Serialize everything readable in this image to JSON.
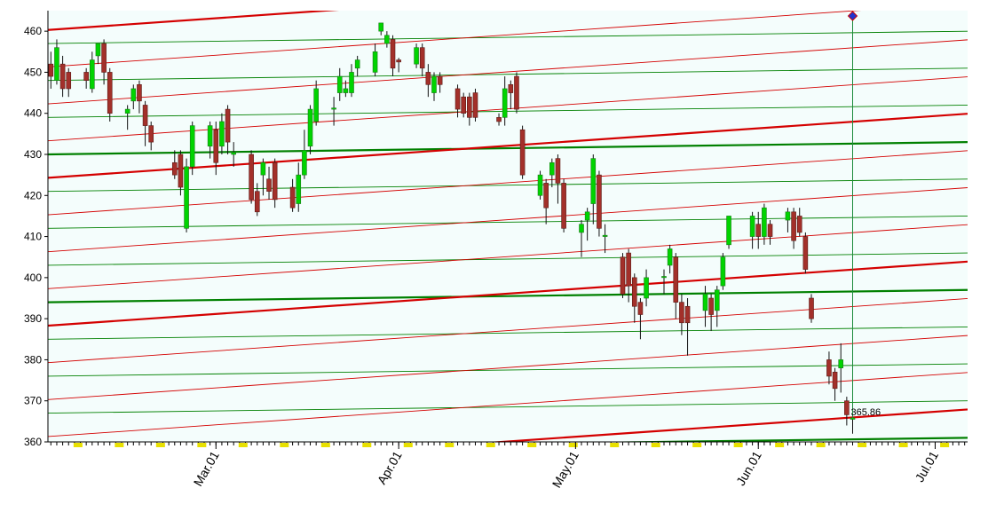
{
  "chart_data": {
    "type": "candlestick",
    "x": [
      0,
      1,
      2,
      3,
      6,
      7,
      8,
      9,
      10,
      13,
      14,
      15,
      16,
      17,
      21,
      22,
      23,
      24,
      27,
      28,
      29,
      30,
      31,
      34,
      35,
      36,
      37,
      38,
      41,
      42,
      43,
      44,
      45,
      48,
      49,
      50,
      51,
      52,
      55,
      56,
      57,
      58,
      59,
      62,
      63,
      64,
      65,
      66,
      69,
      70,
      71,
      72,
      76,
      77,
      78,
      79,
      80,
      83,
      84,
      85,
      86,
      87,
      90,
      91,
      92,
      93,
      94,
      97,
      98,
      99,
      100,
      101,
      104,
      105,
      106,
      107,
      108,
      111,
      112,
      113,
      114,
      115,
      119,
      120,
      121,
      122,
      125,
      126,
      127,
      128,
      129,
      132,
      133,
      134,
      135,
      136
    ],
    "open": [
      452,
      448,
      452,
      450,
      450,
      446,
      454,
      457,
      450,
      440,
      443,
      447,
      442,
      437,
      428,
      430,
      412,
      427,
      432,
      436,
      432,
      441,
      430,
      430,
      421,
      425,
      424,
      428,
      422,
      418,
      425,
      432,
      438,
      441,
      445,
      445,
      445,
      451,
      450,
      460,
      457,
      458,
      453,
      452,
      456,
      450,
      445,
      449,
      446,
      444,
      444,
      445,
      439,
      439,
      447,
      449,
      436,
      420,
      423,
      425,
      429,
      423,
      411,
      414,
      418,
      425,
      410,
      405,
      406,
      400,
      394,
      395,
      400,
      403,
      405,
      394,
      393,
      392,
      395,
      392,
      398,
      408,
      410,
      413,
      410,
      413,
      414,
      416,
      415,
      410,
      395,
      380,
      377,
      378,
      370,
      365.5
    ],
    "high": [
      455,
      458,
      454,
      451,
      451,
      455,
      457,
      458,
      451,
      442,
      447,
      448,
      443,
      438,
      431,
      431,
      429,
      438,
      438,
      438,
      440,
      442,
      433,
      431,
      423,
      429,
      427,
      429,
      424,
      428,
      436,
      442,
      448,
      444,
      451,
      448,
      452,
      454,
      457,
      462,
      460,
      459,
      453.5,
      457,
      457,
      452,
      450,
      450,
      447,
      445,
      445,
      446,
      440,
      449,
      448,
      450,
      437,
      426,
      424,
      429,
      430,
      424,
      414,
      417,
      430,
      426,
      413,
      406,
      407,
      401,
      395,
      402,
      402,
      408,
      406,
      396,
      395,
      398,
      396,
      398,
      406,
      415,
      416,
      416,
      418,
      414,
      417,
      417,
      417,
      411,
      396,
      382,
      378,
      384,
      371,
      369
    ],
    "low": [
      446,
      447,
      444,
      444,
      446,
      445,
      452,
      447,
      438,
      436,
      441,
      440,
      432,
      431,
      424,
      420,
      411,
      425,
      429,
      425,
      430,
      430,
      427,
      418,
      415,
      420,
      419,
      417,
      416,
      416,
      424,
      430,
      437,
      437,
      443,
      444,
      444,
      449,
      449,
      459,
      456,
      449,
      450,
      451,
      449,
      444,
      443,
      445,
      439,
      439,
      437,
      438,
      437,
      437,
      441,
      440,
      424,
      419,
      413,
      422,
      418,
      411,
      405,
      409,
      413,
      410,
      406,
      395,
      394,
      389,
      385,
      393,
      396,
      401,
      390,
      386,
      381,
      388,
      387,
      388,
      397,
      407,
      407,
      407,
      408,
      408,
      411,
      407,
      410,
      401,
      389,
      374,
      370,
      372,
      364,
      362
    ],
    "close": [
      449,
      456,
      446,
      446,
      448,
      453,
      457,
      450,
      440,
      441,
      446,
      443,
      437,
      433,
      425,
      422,
      427,
      437,
      437,
      428,
      438,
      433,
      430.5,
      419,
      416,
      428,
      421,
      419,
      417,
      425,
      431,
      441,
      446,
      441.3,
      449,
      446,
      450,
      453,
      455,
      462,
      459,
      451,
      452.5,
      456,
      451,
      447,
      449,
      447,
      441,
      440,
      439,
      439,
      438,
      446,
      445,
      441,
      425,
      425,
      417,
      428,
      423,
      412,
      413,
      416,
      429,
      412,
      410.3,
      396,
      398,
      393,
      391,
      400,
      400.3,
      407,
      394,
      389,
      389,
      396,
      391,
      397,
      405,
      415,
      415,
      410,
      417,
      410,
      416,
      409,
      411,
      402,
      390,
      376,
      373,
      380,
      366.6,
      365.86
    ],
    "up_color": "#00d400",
    "down_color": "#a3302a",
    "xlim": [
      -0.5,
      155.5
    ],
    "xticks": [
      {
        "value": 28,
        "label": "Mar.01"
      },
      {
        "value": 59,
        "label": "Apr.01"
      },
      {
        "value": 89,
        "label": "May.01"
      },
      {
        "value": 120,
        "label": "Jun.01"
      },
      {
        "value": 150,
        "label": "Jul.01"
      }
    ],
    "ylim": [
      360,
      465
    ],
    "yticks": [
      360,
      370,
      380,
      390,
      400,
      410,
      420,
      430,
      440,
      450,
      460
    ],
    "red_color": "#d40000",
    "green_color": "#008000",
    "red_lines": [
      {
        "from": 460.3,
        "to": 475.9,
        "bold": true
      },
      {
        "from": 451.3,
        "to": 466.9,
        "bold": false
      },
      {
        "from": 442.3,
        "to": 457.9,
        "bold": false
      },
      {
        "from": 433.3,
        "to": 448.9,
        "bold": false
      },
      {
        "from": 424.3,
        "to": 439.9,
        "bold": true
      },
      {
        "from": 415.3,
        "to": 430.9,
        "bold": false
      },
      {
        "from": 406.3,
        "to": 421.9,
        "bold": false
      },
      {
        "from": 397.3,
        "to": 412.9,
        "bold": false
      },
      {
        "from": 388.3,
        "to": 403.9,
        "bold": true
      },
      {
        "from": 379.3,
        "to": 394.9,
        "bold": false
      },
      {
        "from": 370.3,
        "to": 385.9,
        "bold": false
      },
      {
        "from": 361.3,
        "to": 376.9,
        "bold": false
      },
      {
        "from": 352.3,
        "to": 367.9,
        "bold": true
      }
    ],
    "green_lines": [
      {
        "from": 457,
        "to": 460,
        "bold": false
      },
      {
        "from": 448,
        "to": 451,
        "bold": false
      },
      {
        "from": 439,
        "to": 442,
        "bold": false
      },
      {
        "from": 430,
        "to": 433,
        "bold": true
      },
      {
        "from": 421,
        "to": 424,
        "bold": false
      },
      {
        "from": 412,
        "to": 415,
        "bold": false
      },
      {
        "from": 403,
        "to": 406,
        "bold": false
      },
      {
        "from": 394,
        "to": 397,
        "bold": true
      },
      {
        "from": 385,
        "to": 388,
        "bold": false
      },
      {
        "from": 376,
        "to": 379,
        "bold": false
      },
      {
        "from": 367,
        "to": 370,
        "bold": false
      },
      {
        "from": 358,
        "to": 361,
        "bold": true
      }
    ]
  }
}
